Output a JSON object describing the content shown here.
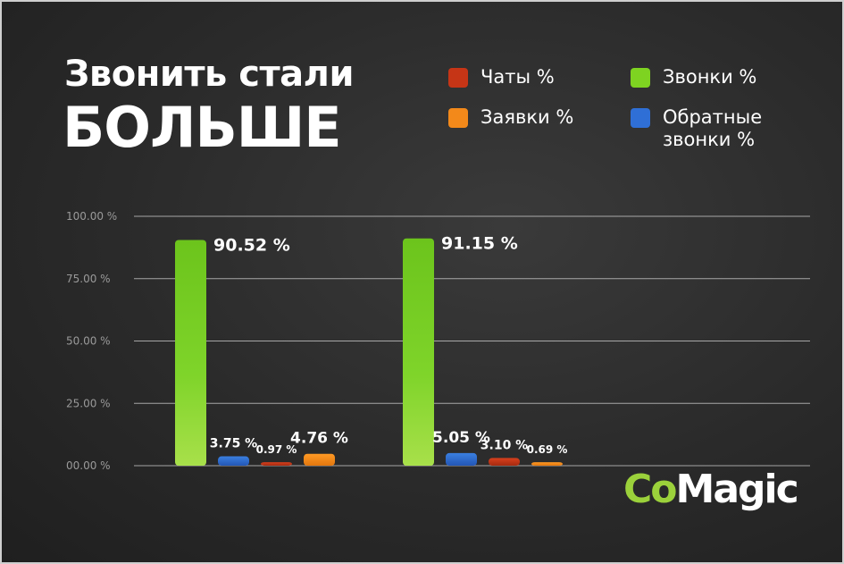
{
  "title_line1": "Звонить стали",
  "title_line2": "БОЛЬШЕ",
  "legend": [
    {
      "label": "Чаты %",
      "color": "#c63516"
    },
    {
      "label": "Звонки %",
      "color": "#7ed321"
    },
    {
      "label": "Заявки %",
      "color": "#f3891a"
    },
    {
      "label": "Обратные звонки %",
      "color": "#2f6fd6"
    }
  ],
  "logo": {
    "part1": "Co",
    "part2": "Magic"
  },
  "chart_data": {
    "type": "bar",
    "categories": [
      "",
      ""
    ],
    "series": [
      {
        "name": "Звонки %",
        "color": "#7ed321",
        "values": [
          90.52,
          91.15
        ],
        "labels": [
          "90.52 %",
          "91.15 %"
        ]
      },
      {
        "name": "Обратные звонки %",
        "color": "#2f6fd6",
        "values": [
          3.75,
          5.05
        ],
        "labels": [
          "3.75 %",
          "5.05 %"
        ]
      },
      {
        "name": "Чаты %",
        "color": "#c63516",
        "values": [
          0.97,
          3.1
        ],
        "labels": [
          "0.97 %",
          "3.10 %"
        ]
      },
      {
        "name": "Заявки %",
        "color": "#f3891a",
        "values": [
          4.76,
          0.69
        ],
        "labels": [
          "4.76 %",
          "0.69 %"
        ]
      }
    ],
    "ylim": [
      0,
      100
    ],
    "yticks": [
      "00.00 %",
      "25.00 %",
      "50.00 %",
      "75.00 %",
      "100.00 %"
    ],
    "grid": true
  }
}
